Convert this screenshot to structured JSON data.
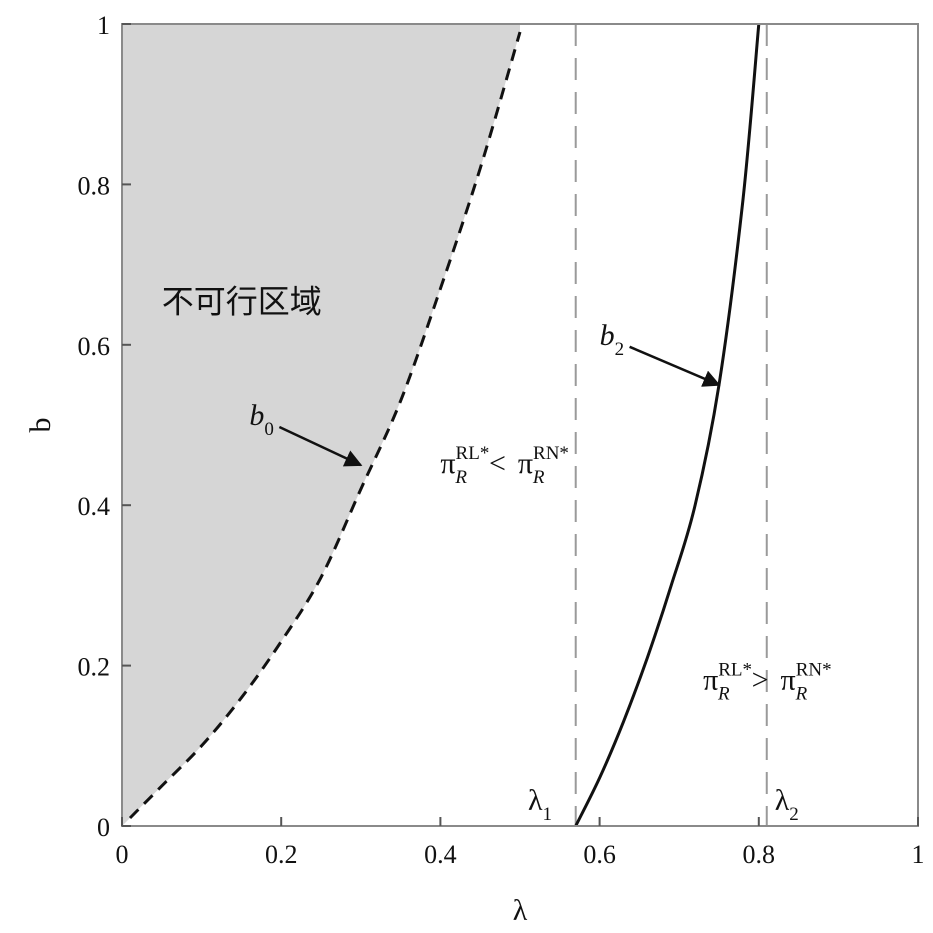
{
  "chart_data": {
    "type": "line",
    "title": "",
    "xlabel": "λ",
    "ylabel": "b",
    "xlim": [
      0,
      1
    ],
    "ylim": [
      0,
      1
    ],
    "grid": false,
    "legend": "none",
    "x_ticks": [
      "0",
      "0.2",
      "0.4",
      "0.6",
      "0.8",
      "1"
    ],
    "y_ticks": [
      "0",
      "0.2",
      "0.4",
      "0.6",
      "0.8",
      "1"
    ],
    "series": [
      {
        "style": "dashed",
        "color": "#111111",
        "x": [
          0.01,
          0.05,
          0.1,
          0.15,
          0.2,
          0.25,
          0.3,
          0.35,
          0.4,
          0.45,
          0.5
        ],
        "y": [
          0.01,
          0.05,
          0.1,
          0.16,
          0.23,
          0.31,
          0.42,
          0.53,
          0.67,
          0.82,
          0.99
        ]
      },
      {
        "style": "solid",
        "color": "#111111",
        "x": [
          0.57,
          0.6,
          0.63,
          0.66,
          0.69,
          0.72,
          0.75,
          0.78,
          0.8
        ],
        "y": [
          0.0,
          0.06,
          0.13,
          0.21,
          0.3,
          0.4,
          0.55,
          0.78,
          1.0
        ]
      }
    ],
    "infeasible_fill": "#d6d6d6",
    "vertical_lines": [
      {
        "x": 0.57,
        "color": "#9a9a9a",
        "style": "dashed"
      },
      {
        "x": 0.81,
        "color": "#9a9a9a",
        "style": "dashed"
      }
    ],
    "annotations": {
      "region": {
        "text": "不可行区域",
        "x": 0.05,
        "y": 0.64
      },
      "b0": {
        "base": "b",
        "sub": "0",
        "x": 0.16,
        "y": 0.5,
        "arrow_to": [
          0.3,
          0.45
        ]
      },
      "b2": {
        "base": "b",
        "sub": "2",
        "x": 0.6,
        "y": 0.6,
        "arrow_to": [
          0.75,
          0.55
        ]
      },
      "ineq_left": {
        "lhs": "π",
        "lhs_sub": "R",
        "lhs_sup": "RL*",
        "op": "<",
        "rhs": "π",
        "rhs_sub": "R",
        "rhs_sup": "RN*",
        "x": 0.4,
        "y": 0.44
      },
      "ineq_right": {
        "lhs": "π",
        "lhs_sub": "R",
        "lhs_sup": "RL*",
        "op": ">",
        "rhs": "π",
        "rhs_sub": "R",
        "rhs_sup": "RN*",
        "x": 0.73,
        "y": 0.17
      },
      "lambda1": {
        "base": "λ",
        "sub": "1",
        "x": 0.51,
        "y": 0.02
      },
      "lambda2": {
        "base": "λ",
        "sub": "2",
        "x": 0.82,
        "y": 0.02
      }
    }
  }
}
